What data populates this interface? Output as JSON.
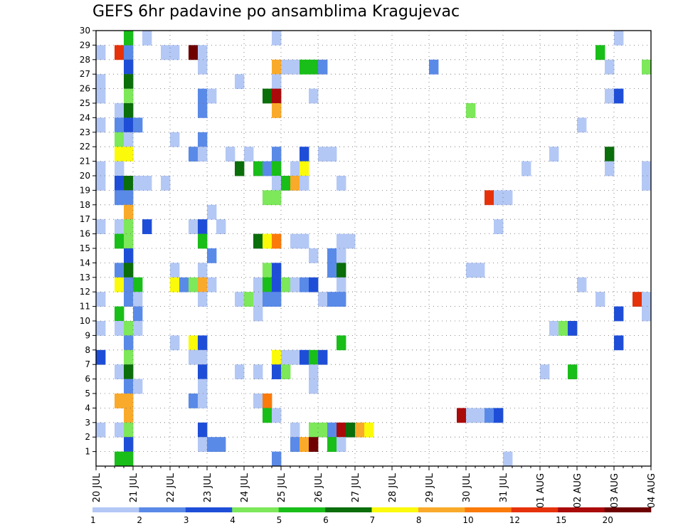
{
  "chart_data": {
    "type": "heatmap",
    "title": "GEFS 6hr padavine po ansamblima Kragujevac",
    "xlabel": "",
    "ylabel": "",
    "x_tick_labels": [
      "20 JUL",
      "21 JUL",
      "22 JUL",
      "23 JUL",
      "24 JUL",
      "25 JUL",
      "26 JUL",
      "27 JUL",
      "28 JUL",
      "29 JUL",
      "30 JUL",
      "31 JUL",
      "01 AUG",
      "02 AUG",
      "03 AUG",
      "04 AUG"
    ],
    "y_tick_labels": [
      "1",
      "2",
      "3",
      "4",
      "5",
      "6",
      "7",
      "8",
      "9",
      "10",
      "11",
      "12",
      "13",
      "14",
      "15",
      "16",
      "17",
      "18",
      "19",
      "20",
      "21",
      "22",
      "23",
      "24",
      "25",
      "26",
      "27",
      "28",
      "29",
      "30"
    ],
    "time_steps": 60,
    "steps_per_day": 4,
    "members": 30,
    "grid": true,
    "colorbar": {
      "labels": [
        "1",
        "2",
        "3",
        "4",
        "5",
        "6",
        "7",
        "8",
        "10",
        "12",
        "15",
        "20"
      ],
      "colors": [
        "#b4c8f5",
        "#5a8ae8",
        "#1e4ed8",
        "#7ce85a",
        "#19be19",
        "#0a6e0a",
        "#fafa0a",
        "#faaa2a",
        "#fa7a0a",
        "#e6320a",
        "#aa0a0a",
        "#6e0000"
      ]
    },
    "cells": [
      [
        0,
        29,
        "#b4c8f5"
      ],
      [
        2,
        29,
        "#e6320a"
      ],
      [
        3,
        29,
        "#5a8ae8"
      ],
      [
        7,
        29,
        "#b4c8f5"
      ],
      [
        8,
        29,
        "#b4c8f5"
      ],
      [
        10,
        29,
        "#6e0000"
      ],
      [
        11,
        29,
        "#b4c8f5"
      ],
      [
        54,
        29,
        "#19be19"
      ],
      [
        3,
        30,
        "#19be19"
      ],
      [
        5,
        30,
        "#b4c8f5"
      ],
      [
        19,
        30,
        "#b4c8f5"
      ],
      [
        56,
        30,
        "#b4c8f5"
      ],
      [
        3,
        28,
        "#1e4ed8"
      ],
      [
        11,
        28,
        "#b4c8f5"
      ],
      [
        19,
        28,
        "#faaa2a"
      ],
      [
        20,
        28,
        "#b4c8f5"
      ],
      [
        21,
        28,
        "#b4c8f5"
      ],
      [
        22,
        28,
        "#19be19"
      ],
      [
        23,
        28,
        "#19be19"
      ],
      [
        24,
        28,
        "#5a8ae8"
      ],
      [
        36,
        28,
        "#5a8ae8"
      ],
      [
        55,
        28,
        "#b4c8f5"
      ],
      [
        59,
        28,
        "#7ce85a"
      ],
      [
        0,
        27,
        "#b4c8f5"
      ],
      [
        3,
        27,
        "#0a6e0a"
      ],
      [
        15,
        27,
        "#b4c8f5"
      ],
      [
        19,
        27,
        "#b4c8f5"
      ],
      [
        0,
        26,
        "#b4c8f5"
      ],
      [
        3,
        26,
        "#7ce85a"
      ],
      [
        11,
        26,
        "#5a8ae8"
      ],
      [
        12,
        26,
        "#b4c8f5"
      ],
      [
        18,
        26,
        "#0a6e0a"
      ],
      [
        19,
        26,
        "#aa0a0a"
      ],
      [
        23,
        26,
        "#b4c8f5"
      ],
      [
        55,
        26,
        "#b4c8f5"
      ],
      [
        56,
        26,
        "#1e4ed8"
      ],
      [
        2,
        25,
        "#b4c8f5"
      ],
      [
        3,
        25,
        "#0a6e0a"
      ],
      [
        11,
        25,
        "#5a8ae8"
      ],
      [
        19,
        25,
        "#faaa2a"
      ],
      [
        40,
        25,
        "#7ce85a"
      ],
      [
        0,
        24,
        "#b4c8f5"
      ],
      [
        2,
        24,
        "#5a8ae8"
      ],
      [
        3,
        24,
        "#1e4ed8"
      ],
      [
        4,
        24,
        "#5a8ae8"
      ],
      [
        52,
        24,
        "#b4c8f5"
      ],
      [
        2,
        23,
        "#7ce85a"
      ],
      [
        3,
        23,
        "#b4c8f5"
      ],
      [
        8,
        23,
        "#b4c8f5"
      ],
      [
        11,
        23,
        "#5a8ae8"
      ],
      [
        2,
        22,
        "#fafa0a"
      ],
      [
        3,
        22,
        "#fafa0a"
      ],
      [
        10,
        22,
        "#5a8ae8"
      ],
      [
        11,
        22,
        "#b4c8f5"
      ],
      [
        14,
        22,
        "#b4c8f5"
      ],
      [
        16,
        22,
        "#b4c8f5"
      ],
      [
        19,
        22,
        "#5a8ae8"
      ],
      [
        22,
        22,
        "#1e4ed8"
      ],
      [
        24,
        22,
        "#b4c8f5"
      ],
      [
        25,
        22,
        "#b4c8f5"
      ],
      [
        49,
        22,
        "#b4c8f5"
      ],
      [
        55,
        22,
        "#0a6e0a"
      ],
      [
        0,
        21,
        "#b4c8f5"
      ],
      [
        2,
        21,
        "#b4c8f5"
      ],
      [
        15,
        21,
        "#0a6e0a"
      ],
      [
        17,
        21,
        "#19be19"
      ],
      [
        18,
        21,
        "#5a8ae8"
      ],
      [
        19,
        21,
        "#19be19"
      ],
      [
        21,
        21,
        "#b4c8f5"
      ],
      [
        22,
        21,
        "#fafa0a"
      ],
      [
        46,
        21,
        "#b4c8f5"
      ],
      [
        55,
        21,
        "#b4c8f5"
      ],
      [
        59,
        21,
        "#b4c8f5"
      ],
      [
        0,
        20,
        "#b4c8f5"
      ],
      [
        2,
        20,
        "#1e4ed8"
      ],
      [
        3,
        20,
        "#0a6e0a"
      ],
      [
        4,
        20,
        "#b4c8f5"
      ],
      [
        5,
        20,
        "#b4c8f5"
      ],
      [
        7,
        20,
        "#b4c8f5"
      ],
      [
        19,
        20,
        "#b4c8f5"
      ],
      [
        20,
        20,
        "#19be19"
      ],
      [
        21,
        20,
        "#faaa2a"
      ],
      [
        22,
        20,
        "#b4c8f5"
      ],
      [
        26,
        20,
        "#b4c8f5"
      ],
      [
        59,
        20,
        "#b4c8f5"
      ],
      [
        2,
        19,
        "#5a8ae8"
      ],
      [
        3,
        19,
        "#5a8ae8"
      ],
      [
        18,
        19,
        "#7ce85a"
      ],
      [
        19,
        19,
        "#7ce85a"
      ],
      [
        42,
        19,
        "#e6320a"
      ],
      [
        43,
        19,
        "#b4c8f5"
      ],
      [
        44,
        19,
        "#b4c8f5"
      ],
      [
        3,
        18,
        "#faaa2a"
      ],
      [
        12,
        18,
        "#b4c8f5"
      ],
      [
        0,
        17,
        "#b4c8f5"
      ],
      [
        2,
        17,
        "#b4c8f5"
      ],
      [
        3,
        17,
        "#7ce85a"
      ],
      [
        5,
        17,
        "#1e4ed8"
      ],
      [
        10,
        17,
        "#b4c8f5"
      ],
      [
        11,
        17,
        "#1e4ed8"
      ],
      [
        13,
        17,
        "#b4c8f5"
      ],
      [
        43,
        17,
        "#b4c8f5"
      ],
      [
        2,
        16,
        "#19be19"
      ],
      [
        3,
        16,
        "#7ce85a"
      ],
      [
        11,
        16,
        "#19be19"
      ],
      [
        17,
        16,
        "#0a6e0a"
      ],
      [
        18,
        16,
        "#fafa0a"
      ],
      [
        19,
        16,
        "#fa7a0a"
      ],
      [
        21,
        16,
        "#b4c8f5"
      ],
      [
        22,
        16,
        "#b4c8f5"
      ],
      [
        26,
        16,
        "#b4c8f5"
      ],
      [
        27,
        16,
        "#b4c8f5"
      ],
      [
        3,
        15,
        "#1e4ed8"
      ],
      [
        12,
        15,
        "#5a8ae8"
      ],
      [
        23,
        15,
        "#b4c8f5"
      ],
      [
        25,
        15,
        "#5a8ae8"
      ],
      [
        26,
        15,
        "#b4c8f5"
      ],
      [
        2,
        14,
        "#5a8ae8"
      ],
      [
        3,
        14,
        "#0a6e0a"
      ],
      [
        8,
        14,
        "#b4c8f5"
      ],
      [
        11,
        14,
        "#b4c8f5"
      ],
      [
        18,
        14,
        "#7ce85a"
      ],
      [
        19,
        14,
        "#1e4ed8"
      ],
      [
        25,
        14,
        "#5a8ae8"
      ],
      [
        26,
        14,
        "#0a6e0a"
      ],
      [
        40,
        14,
        "#b4c8f5"
      ],
      [
        41,
        14,
        "#b4c8f5"
      ],
      [
        2,
        13,
        "#fafa0a"
      ],
      [
        3,
        13,
        "#5a8ae8"
      ],
      [
        4,
        13,
        "#19be19"
      ],
      [
        8,
        13,
        "#fafa0a"
      ],
      [
        9,
        13,
        "#5a8ae8"
      ],
      [
        10,
        13,
        "#7ce85a"
      ],
      [
        11,
        13,
        "#faaa2a"
      ],
      [
        12,
        13,
        "#b4c8f5"
      ],
      [
        17,
        13,
        "#b4c8f5"
      ],
      [
        18,
        13,
        "#19be19"
      ],
      [
        19,
        13,
        "#1e4ed8"
      ],
      [
        20,
        13,
        "#7ce85a"
      ],
      [
        21,
        13,
        "#b4c8f5"
      ],
      [
        22,
        13,
        "#5a8ae8"
      ],
      [
        23,
        13,
        "#1e4ed8"
      ],
      [
        26,
        13,
        "#b4c8f5"
      ],
      [
        52,
        13,
        "#b4c8f5"
      ],
      [
        0,
        12,
        "#b4c8f5"
      ],
      [
        3,
        12,
        "#5a8ae8"
      ],
      [
        4,
        12,
        "#b4c8f5"
      ],
      [
        11,
        12,
        "#b4c8f5"
      ],
      [
        15,
        12,
        "#b4c8f5"
      ],
      [
        16,
        12,
        "#7ce85a"
      ],
      [
        17,
        12,
        "#b4c8f5"
      ],
      [
        18,
        12,
        "#5a8ae8"
      ],
      [
        19,
        12,
        "#5a8ae8"
      ],
      [
        24,
        12,
        "#b4c8f5"
      ],
      [
        25,
        12,
        "#5a8ae8"
      ],
      [
        26,
        12,
        "#5a8ae8"
      ],
      [
        54,
        12,
        "#b4c8f5"
      ],
      [
        58,
        12,
        "#e6320a"
      ],
      [
        59,
        12,
        "#b4c8f5"
      ],
      [
        2,
        11,
        "#19be19"
      ],
      [
        4,
        11,
        "#5a8ae8"
      ],
      [
        17,
        11,
        "#b4c8f5"
      ],
      [
        56,
        11,
        "#1e4ed8"
      ],
      [
        59,
        11,
        "#b4c8f5"
      ],
      [
        0,
        10,
        "#b4c8f5"
      ],
      [
        2,
        10,
        "#b4c8f5"
      ],
      [
        3,
        10,
        "#7ce85a"
      ],
      [
        4,
        10,
        "#b4c8f5"
      ],
      [
        49,
        10,
        "#b4c8f5"
      ],
      [
        50,
        10,
        "#7ce85a"
      ],
      [
        51,
        10,
        "#1e4ed8"
      ],
      [
        3,
        9,
        "#5a8ae8"
      ],
      [
        8,
        9,
        "#b4c8f5"
      ],
      [
        10,
        9,
        "#fafa0a"
      ],
      [
        11,
        9,
        "#1e4ed8"
      ],
      [
        26,
        9,
        "#19be19"
      ],
      [
        56,
        9,
        "#1e4ed8"
      ],
      [
        0,
        8,
        "#1e4ed8"
      ],
      [
        3,
        8,
        "#7ce85a"
      ],
      [
        10,
        8,
        "#b4c8f5"
      ],
      [
        11,
        8,
        "#b4c8f5"
      ],
      [
        19,
        8,
        "#fafa0a"
      ],
      [
        20,
        8,
        "#b4c8f5"
      ],
      [
        21,
        8,
        "#b4c8f5"
      ],
      [
        22,
        8,
        "#1e4ed8"
      ],
      [
        23,
        8,
        "#19be19"
      ],
      [
        24,
        8,
        "#1e4ed8"
      ],
      [
        2,
        7,
        "#b4c8f5"
      ],
      [
        3,
        7,
        "#0a6e0a"
      ],
      [
        11,
        7,
        "#1e4ed8"
      ],
      [
        15,
        7,
        "#b4c8f5"
      ],
      [
        17,
        7,
        "#b4c8f5"
      ],
      [
        19,
        7,
        "#1e4ed8"
      ],
      [
        20,
        7,
        "#7ce85a"
      ],
      [
        23,
        7,
        "#b4c8f5"
      ],
      [
        48,
        7,
        "#b4c8f5"
      ],
      [
        51,
        7,
        "#19be19"
      ],
      [
        3,
        6,
        "#5a8ae8"
      ],
      [
        4,
        6,
        "#b4c8f5"
      ],
      [
        11,
        6,
        "#b4c8f5"
      ],
      [
        23,
        6,
        "#b4c8f5"
      ],
      [
        2,
        5,
        "#faaa2a"
      ],
      [
        3,
        5,
        "#faaa2a"
      ],
      [
        10,
        5,
        "#5a8ae8"
      ],
      [
        11,
        5,
        "#b4c8f5"
      ],
      [
        17,
        5,
        "#b4c8f5"
      ],
      [
        18,
        5,
        "#fa7a0a"
      ],
      [
        3,
        4,
        "#faaa2a"
      ],
      [
        18,
        4,
        "#19be19"
      ],
      [
        19,
        4,
        "#b4c8f5"
      ],
      [
        39,
        4,
        "#aa0a0a"
      ],
      [
        40,
        4,
        "#b4c8f5"
      ],
      [
        41,
        4,
        "#b4c8f5"
      ],
      [
        42,
        4,
        "#5a8ae8"
      ],
      [
        43,
        4,
        "#1e4ed8"
      ],
      [
        0,
        3,
        "#b4c8f5"
      ],
      [
        2,
        3,
        "#b4c8f5"
      ],
      [
        3,
        3,
        "#7ce85a"
      ],
      [
        11,
        3,
        "#1e4ed8"
      ],
      [
        21,
        3,
        "#b4c8f5"
      ],
      [
        23,
        3,
        "#7ce85a"
      ],
      [
        24,
        3,
        "#7ce85a"
      ],
      [
        25,
        3,
        "#5a8ae8"
      ],
      [
        26,
        3,
        "#aa0a0a"
      ],
      [
        27,
        3,
        "#0a6e0a"
      ],
      [
        28,
        3,
        "#faaa2a"
      ],
      [
        29,
        3,
        "#fafa0a"
      ],
      [
        3,
        2,
        "#1e4ed8"
      ],
      [
        11,
        2,
        "#b4c8f5"
      ],
      [
        12,
        2,
        "#5a8ae8"
      ],
      [
        13,
        2,
        "#5a8ae8"
      ],
      [
        21,
        2,
        "#5a8ae8"
      ],
      [
        22,
        2,
        "#faaa2a"
      ],
      [
        23,
        2,
        "#6e0000"
      ],
      [
        25,
        2,
        "#19be19"
      ],
      [
        26,
        2,
        "#b4c8f5"
      ],
      [
        2,
        1,
        "#19be19"
      ],
      [
        3,
        1,
        "#19be19"
      ],
      [
        19,
        1,
        "#5a8ae8"
      ],
      [
        44,
        1,
        "#b4c8f5"
      ]
    ]
  }
}
